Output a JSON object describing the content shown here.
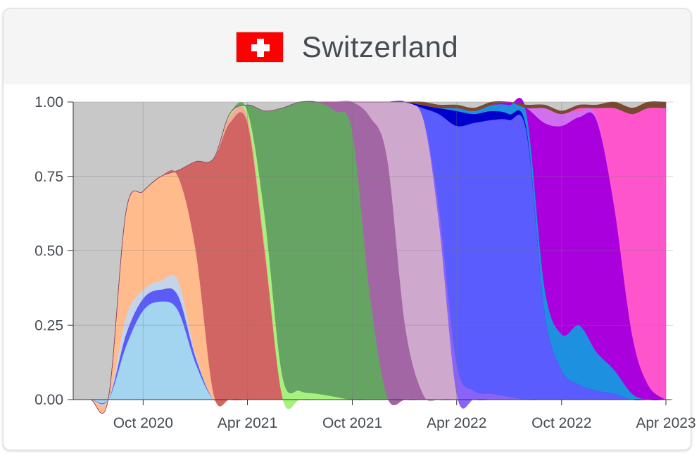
{
  "header": {
    "country": "Switzerland",
    "flag_icon": "swiss-flag-icon"
  },
  "chart_data": {
    "type": "area",
    "stacked": true,
    "normalized": true,
    "title": "Switzerland",
    "xlabel": "",
    "ylabel": "",
    "ylim": [
      0,
      1
    ],
    "grid": true,
    "legend": "none",
    "y_ticks": [
      "0.00",
      "0.25",
      "0.50",
      "0.75",
      "1.00"
    ],
    "x_ticks": [
      "Oct 2020",
      "Apr 2021",
      "Oct 2021",
      "Apr 2022",
      "Oct 2022",
      "Apr 2023"
    ],
    "x": [
      "2020-06-01",
      "2020-07-01",
      "2020-08-01",
      "2020-09-01",
      "2020-10-01",
      "2020-11-01",
      "2020-12-01",
      "2021-01-01",
      "2021-02-01",
      "2021-03-01",
      "2021-04-01",
      "2021-05-01",
      "2021-06-01",
      "2021-07-01",
      "2021-08-01",
      "2021-09-01",
      "2021-10-01",
      "2021-11-01",
      "2021-12-01",
      "2022-01-01",
      "2022-02-01",
      "2022-03-01",
      "2022-04-01",
      "2022-05-01",
      "2022-06-01",
      "2022-07-01",
      "2022-08-01",
      "2022-09-01",
      "2022-10-01",
      "2022-11-01",
      "2022-12-01",
      "2023-01-01",
      "2023-02-01",
      "2023-03-01",
      "2023-04-01"
    ],
    "series": [
      {
        "color": "#a3d5f0",
        "values": [
          0,
          0,
          0,
          0.18,
          0.3,
          0.33,
          0.3,
          0.12,
          0,
          0,
          0,
          0,
          0,
          0,
          0,
          0,
          0,
          0,
          0,
          0,
          0,
          0,
          0,
          0,
          0,
          0,
          0,
          0,
          0,
          0,
          0,
          0,
          0,
          0,
          0
        ]
      },
      {
        "color": "#5a5cf5",
        "values": [
          0,
          0,
          0,
          0.04,
          0.04,
          0.04,
          0.05,
          0.02,
          0,
          0,
          0,
          0,
          0,
          0,
          0,
          0,
          0,
          0,
          0,
          0,
          0,
          0,
          0,
          0,
          0,
          0,
          0,
          0,
          0,
          0,
          0,
          0,
          0,
          0,
          0
        ]
      },
      {
        "color": "#c6d4ea",
        "values": [
          0,
          0,
          0,
          0.06,
          0.03,
          0.03,
          0.05,
          0.01,
          0,
          0,
          0,
          0,
          0,
          0,
          0,
          0,
          0,
          0,
          0,
          0,
          0,
          0,
          0,
          0,
          0,
          0,
          0,
          0,
          0,
          0,
          0,
          0,
          0,
          0,
          0
        ]
      },
      {
        "color": "#ffbb8c",
        "values": [
          0,
          0,
          0,
          0.35,
          0.33,
          0.35,
          0.35,
          0.35,
          0.02,
          0,
          0,
          0,
          0,
          0,
          0,
          0,
          0,
          0,
          0,
          0,
          0,
          0,
          0,
          0,
          0,
          0,
          0,
          0,
          0,
          0,
          0,
          0,
          0,
          0,
          0
        ]
      },
      {
        "color": "#d06563",
        "values": [
          0,
          0,
          0,
          0,
          0,
          0,
          0.02,
          0.3,
          0.79,
          0.93,
          0.93,
          0.5,
          0.01,
          0,
          0,
          0,
          0,
          0,
          0,
          0,
          0,
          0,
          0,
          0,
          0,
          0,
          0,
          0,
          0,
          0,
          0,
          0,
          0,
          0,
          0
        ]
      },
      {
        "color": "#f3a99e",
        "values": [
          0,
          0,
          0,
          0,
          0,
          0,
          0,
          0,
          0,
          0.02,
          0.02,
          0.02,
          0,
          0,
          0,
          0,
          0,
          0,
          0,
          0,
          0,
          0,
          0,
          0,
          0,
          0,
          0,
          0,
          0,
          0,
          0,
          0,
          0,
          0,
          0
        ]
      },
      {
        "color": "#a6f27c",
        "values": [
          0,
          0,
          0,
          0,
          0,
          0,
          0,
          0,
          0,
          0.01,
          0.02,
          0.1,
          0.07,
          0.03,
          0.02,
          0.01,
          0,
          0,
          0,
          0,
          0,
          0,
          0,
          0,
          0,
          0,
          0,
          0,
          0,
          0,
          0,
          0,
          0,
          0,
          0
        ]
      },
      {
        "color": "#65a463",
        "values": [
          0,
          0,
          0,
          0,
          0,
          0,
          0,
          0,
          0,
          0,
          0.02,
          0.35,
          0.9,
          0.97,
          0.98,
          0.96,
          0.9,
          0.35,
          0.01,
          0,
          0,
          0,
          0,
          0,
          0,
          0,
          0,
          0,
          0,
          0,
          0,
          0,
          0,
          0,
          0
        ]
      },
      {
        "color": "#a266a4",
        "values": [
          0,
          0,
          0,
          0,
          0,
          0,
          0,
          0,
          0,
          0,
          0,
          0,
          0,
          0,
          0,
          0.03,
          0.1,
          0.6,
          0.8,
          0.25,
          0.02,
          0,
          0,
          0,
          0,
          0,
          0,
          0,
          0,
          0,
          0,
          0,
          0,
          0,
          0
        ]
      },
      {
        "color": "#cfa9cd",
        "values": [
          0,
          0,
          0,
          0,
          0,
          0,
          0,
          0,
          0,
          0,
          0,
          0,
          0,
          0,
          0,
          0,
          0,
          0.05,
          0.19,
          0.75,
          0.93,
          0.6,
          0.02,
          0,
          0,
          0,
          0,
          0,
          0,
          0,
          0,
          0,
          0,
          0,
          0
        ]
      },
      {
        "color": "#8a63f8",
        "values": [
          0,
          0,
          0,
          0,
          0,
          0,
          0,
          0,
          0,
          0,
          0,
          0,
          0,
          0,
          0,
          0,
          0,
          0,
          0,
          0,
          0,
          0.05,
          0.1,
          0.03,
          0.02,
          0.01,
          0,
          0,
          0,
          0,
          0,
          0,
          0,
          0,
          0
        ]
      },
      {
        "color": "#5a5cfe",
        "values": [
          0,
          0,
          0,
          0,
          0,
          0,
          0,
          0,
          0,
          0,
          0,
          0,
          0,
          0,
          0,
          0,
          0,
          0,
          0,
          0,
          0.03,
          0.31,
          0.8,
          0.9,
          0.92,
          0.93,
          0.9,
          0.3,
          0.1,
          0.05,
          0.03,
          0.02,
          0,
          0,
          0
        ]
      },
      {
        "color": "#0000cc",
        "values": [
          0,
          0,
          0,
          0,
          0,
          0,
          0,
          0,
          0,
          0,
          0,
          0,
          0,
          0,
          0,
          0,
          0,
          0,
          0,
          0,
          0.01,
          0.02,
          0.05,
          0.03,
          0.03,
          0.02,
          0.01,
          0,
          0,
          0,
          0,
          0,
          0,
          0,
          0
        ]
      },
      {
        "color": "#1e90e0",
        "values": [
          0,
          0,
          0,
          0,
          0,
          0,
          0,
          0,
          0,
          0,
          0,
          0,
          0,
          0,
          0,
          0,
          0,
          0,
          0,
          0,
          0,
          0,
          0.01,
          0.01,
          0.02,
          0.03,
          0.05,
          0.08,
          0.12,
          0.2,
          0.13,
          0.08,
          0.02,
          0,
          0
        ]
      },
      {
        "color": "#aa00dd",
        "values": [
          0,
          0,
          0,
          0,
          0,
          0,
          0,
          0,
          0,
          0,
          0,
          0,
          0,
          0,
          0,
          0,
          0,
          0,
          0,
          0,
          0,
          0,
          0,
          0,
          0,
          0.01,
          0.02,
          0.55,
          0.7,
          0.7,
          0.78,
          0.55,
          0.2,
          0.05,
          0
        ]
      },
      {
        "color": "#d070f0",
        "values": [
          0,
          0,
          0,
          0,
          0,
          0,
          0,
          0,
          0,
          0,
          0,
          0,
          0,
          0,
          0,
          0,
          0,
          0,
          0,
          0,
          0,
          0,
          0,
          0,
          0,
          0,
          0,
          0.05,
          0.04,
          0.02,
          0.01,
          0,
          0,
          0,
          0
        ]
      },
      {
        "color": "#ff55cc",
        "values": [
          0,
          0,
          0,
          0,
          0,
          0,
          0,
          0,
          0,
          0,
          0,
          0,
          0,
          0,
          0,
          0,
          0,
          0,
          0,
          0,
          0,
          0,
          0,
          0,
          0,
          0,
          0,
          0,
          0,
          0.01,
          0.03,
          0.33,
          0.74,
          0.93,
          0.98
        ]
      },
      {
        "color": "#7a4a30",
        "values": [
          0,
          0,
          0,
          0,
          0,
          0,
          0,
          0,
          0,
          0,
          0,
          0,
          0,
          0,
          0,
          0,
          0,
          0,
          0,
          0,
          0.01,
          0.01,
          0.01,
          0.01,
          0.01,
          0.01,
          0.01,
          0.01,
          0.01,
          0.01,
          0.01,
          0.02,
          0.02,
          0.02,
          0.02
        ]
      }
    ],
    "remainder_color": "#c8c8c8"
  }
}
